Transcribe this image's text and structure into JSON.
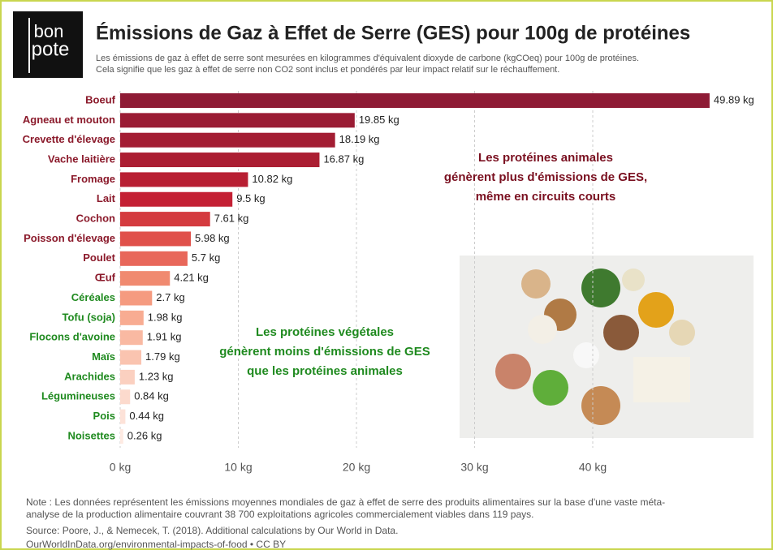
{
  "chart_data": {
    "type": "bar",
    "orientation": "horizontal",
    "logo": [
      "bon",
      "pote"
    ],
    "title": "Émissions de Gaz à Effet de Serre (GES) pour 100g de protéines",
    "subtitle": [
      "Les émissions de gaz à effet de serre sont mesurées en kilogrammes d'équivalent dioxyde de carbone (kgCOeq) pour 100g de protéines.",
      "Cela signifie que les gaz à effet de serre non CO2 sont inclus et pondérés par leur impact relatif sur le réchauffement."
    ],
    "categories": [
      "Boeuf",
      "Agneau et mouton",
      "Crevette d'élevage",
      "Vache laitière",
      "Fromage",
      "Lait",
      "Cochon",
      "Poisson d'élevage",
      "Poulet",
      "Œuf",
      "Céréales",
      "Tofu (soja)",
      "Flocons d'avoine",
      "Maïs",
      "Arachides",
      "Légumineuses",
      "Pois",
      "Noisettes"
    ],
    "values": [
      49.89,
      19.85,
      18.19,
      16.87,
      10.82,
      9.5,
      7.61,
      5.98,
      5.7,
      4.21,
      2.7,
      1.98,
      1.91,
      1.79,
      1.23,
      0.84,
      0.44,
      0.26
    ],
    "value_labels": [
      "49.89 kg",
      "19.85 kg",
      "18.19 kg",
      "16.87 kg",
      "10.82 kg",
      "9.5 kg",
      "7.61 kg",
      "5.98 kg",
      "5.7 kg",
      "4.21 kg",
      "2.7 kg",
      "1.98 kg",
      "1.91 kg",
      "1.79 kg",
      "1.23 kg",
      "0.84 kg",
      "0.44 kg",
      "0.26 kg"
    ],
    "colors": [
      "#8e1b35",
      "#9a1c34",
      "#a31d33",
      "#ab1e32",
      "#b81f33",
      "#c42034",
      "#d43b3f",
      "#e0504a",
      "#e8675a",
      "#f08a70",
      "#f59b80",
      "#f8ac92",
      "#f9b9a2",
      "#fac4b0",
      "#fbd0c0",
      "#fcdacd",
      "#fde2d8",
      "#feeae2"
    ],
    "label_colors": [
      "#8b1a2b",
      "#8b1a2b",
      "#8b1a2b",
      "#8b1a2b",
      "#8b1a2b",
      "#8b1a2b",
      "#8b1a2b",
      "#8b1a2b",
      "#8b1a2b",
      "#8b1a2b",
      "#1f8a1f",
      "#1f8a1f",
      "#1f8a1f",
      "#1f8a1f",
      "#1f8a1f",
      "#1f8a1f",
      "#1f8a1f",
      "#1f8a1f"
    ],
    "xlim": [
      0,
      50
    ],
    "xticks": [
      {
        "value": 0,
        "label": "0 kg"
      },
      {
        "value": 10,
        "label": "10 kg"
      },
      {
        "value": 20,
        "label": "20 kg"
      },
      {
        "value": 30,
        "label": "30 kg"
      },
      {
        "value": 40,
        "label": "40 kg"
      }
    ],
    "grid": true,
    "annotations": [
      {
        "lines": [
          "Les protéines animales",
          "génèrent plus d'émissions de GES,",
          "même en circuits courts"
        ],
        "color": "#7a1020"
      },
      {
        "lines": [
          "Les protéines végétales",
          "génèrent moins d'émissions de GES",
          "que les protéines animales"
        ],
        "color": "#1f8a1f"
      }
    ],
    "note": [
      "Note : Les données représentent les émissions moyennes mondiales de gaz à effet de serre des produits alimentaires sur la base d'une vaste méta-",
      "analyse de la production alimentaire couvrant 38 700 exploitations agricoles commercialement viables dans 119 pays."
    ],
    "source": "Source: Poore, J., & Nemecek, T. (2018). Additional calculations by Our World in Data.",
    "source_url": "OurWorldInData.org/environmental-impacts-of-food • CC BY"
  }
}
